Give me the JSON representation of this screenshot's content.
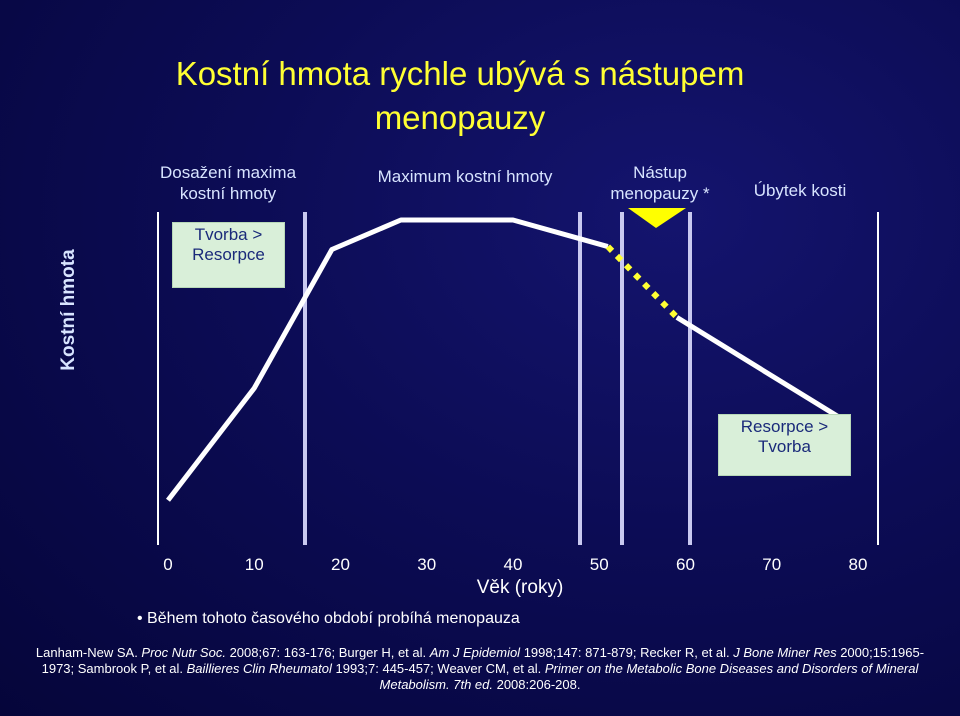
{
  "slide": {
    "title": "Kostní hmota rychle ubývá s nástupem menopauzy"
  },
  "phases": {
    "peak_reached": "Dosažení maxima kostní hmoty",
    "maximum": "Maximum kostní hmoty",
    "menopause_onset": "Nástup menopauzy *",
    "bone_loss": "Úbytek kosti"
  },
  "boxes": {
    "formation": "Tvorba > Resorpce",
    "resorption": "Resorpce > Tvorba"
  },
  "note": "Během tohoto časového období probíhá menopauza",
  "references": {
    "r1_a": "Lanham-New SA. ",
    "r1_b": "Proc Nutr Soc.",
    "r1_c": " 2008;67: 163-176; Burger H, et al. ",
    "r2_a": "Am J Epidemiol",
    "r2_b": " 1998;147: 871-879; Recker R, et al. ",
    "r3_a": "J Bone Miner Res",
    "r3_b": " 2000;15:1965-1973; Sambrook P, et al. ",
    "r4_a": "Baillieres Clin Rheumatol",
    "r4_b": " 1993;7: 445-457; Weaver CM, et al. ",
    "r5_a": "Primer on the Metabolic Bone Diseases and Disorders of Mineral Metabolism. 7th ed.",
    "r5_b": " 2008:206-208."
  },
  "colors": {
    "background": "#0c0c55",
    "title": "#ffff33",
    "curve": "#ffffff",
    "dotted": "#ffff33",
    "box": "#d9efd9",
    "menopause_band": "#c9c9f0"
  },
  "chart_data": {
    "type": "line",
    "title": "Kostní hmota rychle ubývá s nástupem menopauzy",
    "xlabel": "Věk (roky)",
    "ylabel": "Kostní hmota",
    "xlim": [
      0,
      80
    ],
    "ylim": [
      0,
      100
    ],
    "x_ticks": [
      0,
      10,
      20,
      30,
      40,
      50,
      60,
      70,
      80
    ],
    "series": [
      {
        "name": "solid-rise",
        "style": "solid",
        "x": [
          0,
          10,
          19,
          27,
          40,
          51
        ],
        "y": [
          5,
          43,
          90,
          100,
          100,
          91
        ]
      },
      {
        "name": "menopause-decline",
        "style": "dotted",
        "x": [
          51,
          59
        ],
        "y": [
          91,
          67
        ]
      },
      {
        "name": "post-menopause-decline",
        "style": "solid",
        "x": [
          59,
          79
        ],
        "y": [
          67,
          31
        ]
      }
    ],
    "menopause_band": [
      51,
      59
    ],
    "phase_dividers": [
      47,
      81
    ]
  }
}
